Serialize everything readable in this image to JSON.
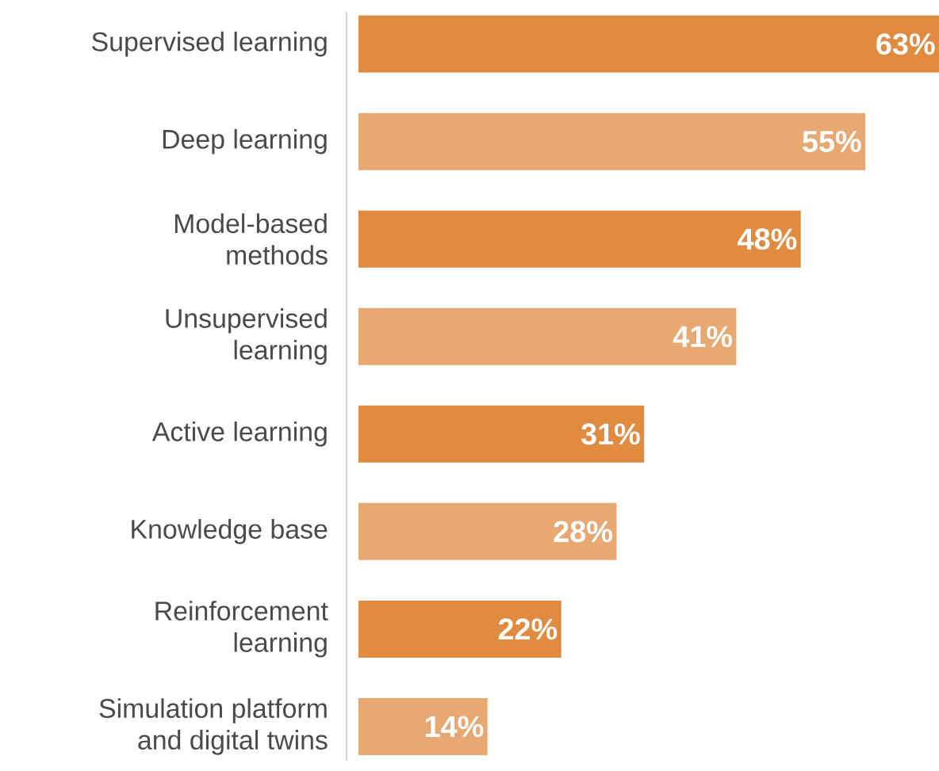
{
  "chart_data": {
    "type": "bar",
    "orientation": "horizontal",
    "categories": [
      "Supervised learning",
      "Deep learning",
      "Model-based\nmethods",
      "Unsupervised\nlearning",
      "Active learning",
      "Knowledge base",
      "Reinforcement\nlearning",
      "Simulation platform\nand digital twins"
    ],
    "values": [
      63,
      55,
      48,
      41,
      31,
      28,
      22,
      14
    ],
    "value_labels": [
      "63%",
      "55%",
      "48%",
      "41%",
      "31%",
      "28%",
      "22%",
      "14%"
    ],
    "colors": [
      "#e08b40",
      "#e8a872",
      "#e08b40",
      "#e8a872",
      "#e08b40",
      "#e8a872",
      "#e08b40",
      "#e8a872"
    ]
  }
}
